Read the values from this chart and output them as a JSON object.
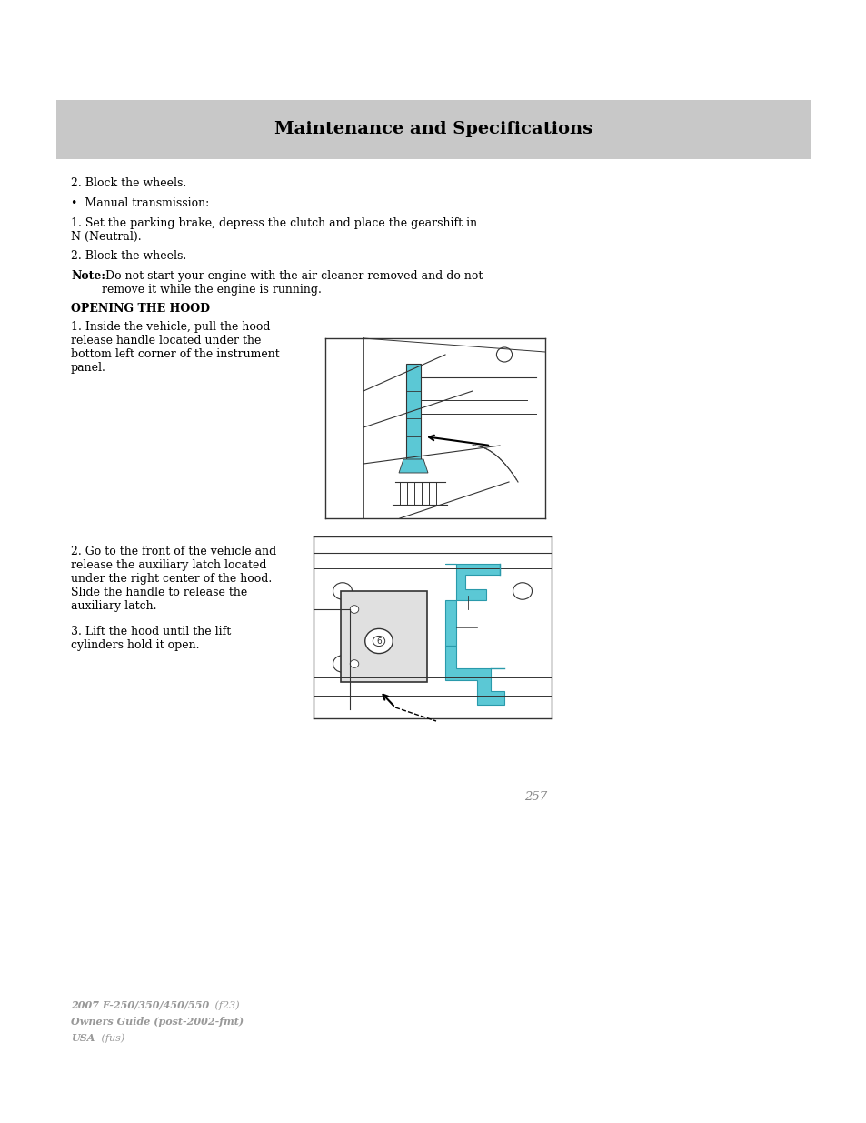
{
  "page_bg": "#ffffff",
  "header_bg": "#c8c8c8",
  "header_text": "Maintenance and Specifications",
  "header_text_color": "#000000",
  "body_text_color": "#000000",
  "gray_text_color": "#999999",
  "page_number": "257",
  "footer_line1_bold": "2007 F-250/350/450/550",
  "footer_line1_normal": " (f23)",
  "footer_line2": "Owners Guide (post-2002-fmt)",
  "footer_line3_bold": "USA",
  "footer_line3_normal": " (fus)",
  "body_fontsize": 9.0,
  "header_fontsize": 14,
  "section_heading": "OPENING THE HOOD",
  "para1": "2. Block the wheels.",
  "bullet1": "•  Manual transmission:",
  "para2": "1. Set the parking brake, depress the clutch and place the gearshift in\nN (Neutral).",
  "para3": "2. Block the wheels.",
  "note_bold": "Note:",
  "note_rest": " Do not start your engine with the air cleaner removed and do not\nremove it while the engine is running.",
  "step1_text": "1. Inside the vehicle, pull the hood\nrelease handle located under the\nbottom left corner of the instrument\npanel.",
  "step2_text": "2. Go to the front of the vehicle and\nrelease the auxiliary latch located\nunder the right center of the hood.\nSlide the handle to release the\nauxiliary latch.",
  "step3_text": "3. Lift the hood until the lift\ncylinders hold it open.",
  "latch_color": "#5bc8d5",
  "line_color": "#333333",
  "diag_border_color": "#444444"
}
